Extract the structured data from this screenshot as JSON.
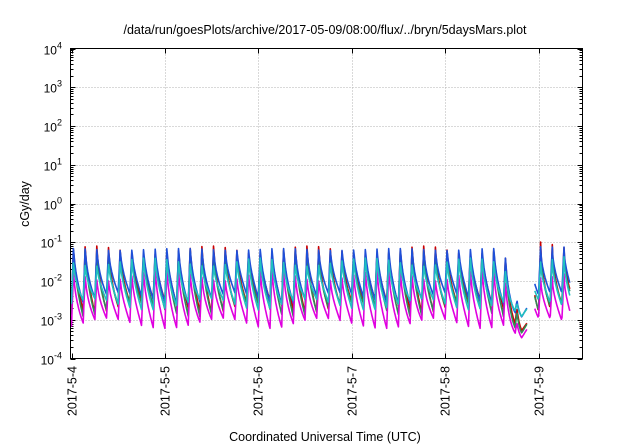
{
  "chart_data": {
    "type": "line",
    "title": "/data/run/goesPlots/archive/2017-05-09/08:00/flux/../bryn/5daysMars.plot",
    "xlabel": "Coordinated Universal Time (UTC)",
    "ylabel": "cGy/day",
    "yscale": "log",
    "ylim": [
      0.0001,
      10000
    ],
    "y_ticks": [
      {
        "base": "10",
        "exp": "-4"
      },
      {
        "base": "10",
        "exp": "-3"
      },
      {
        "base": "10",
        "exp": "-2"
      },
      {
        "base": "10",
        "exp": "-1"
      },
      {
        "base": "10",
        "exp": "0"
      },
      {
        "base": "10",
        "exp": "1"
      },
      {
        "base": "10",
        "exp": "2"
      },
      {
        "base": "10",
        "exp": "3"
      },
      {
        "base": "10",
        "exp": "4"
      }
    ],
    "x_ticks": [
      "2017-5-4",
      "2017-5-5",
      "2017-5-6",
      "2017-5-7",
      "2017-5-8",
      "2017-5-9"
    ],
    "xlim_days": [
      0,
      5.34
    ],
    "grid": true,
    "legend": "none",
    "oscillation_period_hours": 3,
    "data_gap": {
      "start_day": 4.88,
      "end_day": 4.96
    },
    "dip": {
      "start_day": 4.62,
      "min_day": 4.82
    },
    "series": [
      {
        "color": "#cc0000",
        "peak_low": 0.06,
        "peak_high": 0.11,
        "trough_low": 0.0015,
        "trough_high": 0.0035
      },
      {
        "color": "#2e8b57",
        "peak_low": 0.045,
        "peak_high": 0.085,
        "trough_low": 0.0012,
        "trough_high": 0.0028
      },
      {
        "color": "#1e4fd8",
        "peak_low": 0.075,
        "peak_high": 0.09,
        "trough_low": 0.0025,
        "trough_high": 0.005
      },
      {
        "color": "#e000e0",
        "peak_low": 0.012,
        "peak_high": 0.025,
        "trough_low": 0.0006,
        "trough_high": 0.0011
      },
      {
        "color": "#20c0c0",
        "peak_low": 0.028,
        "peak_high": 0.05,
        "trough_low": 0.0018,
        "trough_high": 0.0035
      }
    ]
  }
}
